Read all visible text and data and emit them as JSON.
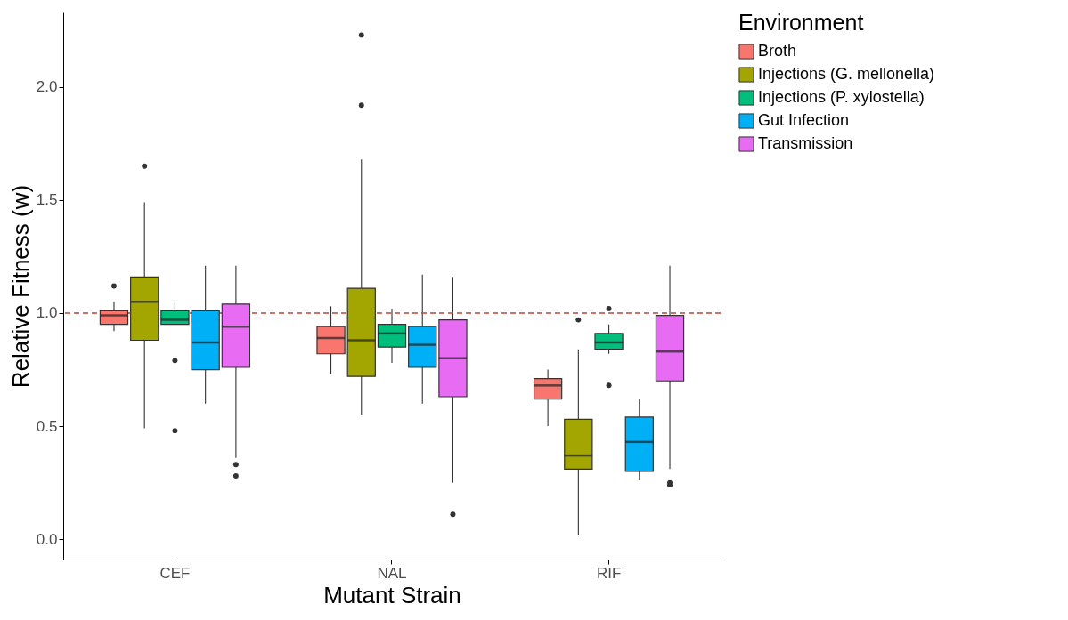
{
  "chart_data": {
    "type": "box",
    "xlabel": "Mutant Strain",
    "ylabel": "Relative Fitness (w)",
    "legend_title": "Environment",
    "legend": "right",
    "grid": false,
    "categories": [
      "CEF",
      "NAL",
      "RIF"
    ],
    "ylim": [
      -0.09,
      2.33
    ],
    "yticks": [
      {
        "value": 0,
        "label": "0.0"
      },
      {
        "value": 0.5,
        "label": "0.5"
      },
      {
        "value": 1,
        "label": "1.0"
      },
      {
        "value": 1.5,
        "label": "1.5"
      },
      {
        "value": 2,
        "label": "2.0"
      }
    ],
    "ref_lines": [
      {
        "axis": "y",
        "value": 1,
        "color": "#b5483b",
        "line_style": "dashed"
      }
    ],
    "series": [
      {
        "name": "Broth",
        "color": "#f8766d",
        "boxes": [
          {
            "low": 0.92,
            "q1": 0.95,
            "median": 0.99,
            "q3": 1.01,
            "high": 1.05,
            "outliers": [
              1.12
            ]
          },
          {
            "low": 0.73,
            "q1": 0.82,
            "median": 0.89,
            "q3": 0.94,
            "high": 1.03
          },
          {
            "low": 0.5,
            "q1": 0.62,
            "median": 0.68,
            "q3": 0.71,
            "high": 0.75
          }
        ]
      },
      {
        "name": "Injections (G. mellonella)",
        "color": "#a3a500",
        "boxes": [
          {
            "low": 0.49,
            "q1": 0.88,
            "median": 1.05,
            "q3": 1.16,
            "high": 1.49,
            "outliers": [
              1.65
            ]
          },
          {
            "low": 0.55,
            "q1": 0.72,
            "median": 0.88,
            "q3": 1.11,
            "high": 1.68,
            "outliers": [
              1.92,
              2.23
            ]
          },
          {
            "low": 0.02,
            "q1": 0.31,
            "median": 0.37,
            "q3": 0.53,
            "high": 0.84,
            "outliers": [
              0.97
            ]
          }
        ]
      },
      {
        "name": "Injections (P. xylostella)",
        "color": "#00bf7d",
        "boxes": [
          {
            "low": 0.95,
            "q1": 0.95,
            "median": 0.97,
            "q3": 1.01,
            "high": 1.05,
            "outliers": [
              0.79,
              0.48
            ]
          },
          {
            "low": 0.78,
            "q1": 0.85,
            "median": 0.91,
            "q3": 0.95,
            "high": 1.02
          },
          {
            "low": 0.82,
            "q1": 0.84,
            "median": 0.87,
            "q3": 0.91,
            "high": 0.95,
            "outliers": [
              1.02,
              0.68
            ]
          }
        ]
      },
      {
        "name": "Gut Infection",
        "color": "#00b0f6",
        "boxes": [
          {
            "low": 0.6,
            "q1": 0.75,
            "median": 0.87,
            "q3": 1.01,
            "high": 1.21
          },
          {
            "low": 0.6,
            "q1": 0.76,
            "median": 0.86,
            "q3": 0.94,
            "high": 1.17
          },
          {
            "low": 0.26,
            "q1": 0.3,
            "median": 0.43,
            "q3": 0.54,
            "high": 0.62
          }
        ]
      },
      {
        "name": "Transmission",
        "color": "#e76bf3",
        "boxes": [
          {
            "low": 0.36,
            "q1": 0.76,
            "median": 0.94,
            "q3": 1.04,
            "high": 1.21,
            "outliers": [
              0.33,
              0.28
            ]
          },
          {
            "low": 0.25,
            "q1": 0.63,
            "median": 0.8,
            "q3": 0.97,
            "high": 1.16,
            "outliers": [
              0.11
            ]
          },
          {
            "low": 0.31,
            "q1": 0.7,
            "median": 0.83,
            "q3": 0.99,
            "high": 1.21,
            "outliers": [
              0.25,
              0.24
            ]
          }
        ]
      }
    ]
  }
}
